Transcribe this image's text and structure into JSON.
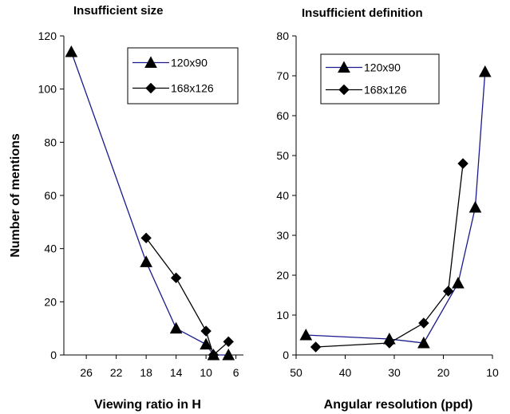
{
  "chart_data": [
    {
      "type": "line",
      "title": "Insufficient size",
      "xlabel": "Viewing ratio in H",
      "ylabel": "Number of mentions",
      "xlim": [
        29,
        5
      ],
      "ylim": [
        0,
        120
      ],
      "x_ticks": [
        "26",
        "22",
        "18",
        "14",
        "10",
        "6"
      ],
      "y_ticks": [
        "0",
        "20",
        "40",
        "60",
        "80",
        "100",
        "120"
      ],
      "grid": false,
      "legend_position": "top-right",
      "series": [
        {
          "name": "120x90",
          "marker": "triangle",
          "color": "#1a1a8c",
          "x": [
            28,
            18,
            14,
            10,
            9,
            7
          ],
          "y": [
            114,
            35,
            10,
            4,
            0,
            0
          ]
        },
        {
          "name": "168x126",
          "marker": "diamond",
          "color": "#000000",
          "x": [
            18,
            14,
            10,
            9,
            7
          ],
          "y": [
            44,
            29,
            9,
            0,
            5
          ]
        }
      ]
    },
    {
      "type": "line",
      "title": "Insufficient definition",
      "xlabel": "Angular resolution (ppd)",
      "ylabel": "",
      "xlim": [
        50,
        10
      ],
      "ylim": [
        0,
        80
      ],
      "x_ticks": [
        "50",
        "40",
        "30",
        "20",
        "10"
      ],
      "y_ticks": [
        "0",
        "10",
        "20",
        "30",
        "40",
        "50",
        "60",
        "70",
        "80"
      ],
      "grid": false,
      "legend_position": "top-left",
      "series": [
        {
          "name": "120x90",
          "marker": "triangle",
          "color": "#1a1a8c",
          "x": [
            48,
            31,
            24,
            17,
            13.5,
            11.5
          ],
          "y": [
            5,
            4,
            3,
            18,
            37,
            71
          ]
        },
        {
          "name": "168x126",
          "marker": "diamond",
          "color": "#000000",
          "x": [
            46,
            31,
            24,
            19,
            16
          ],
          "y": [
            2,
            3,
            8,
            16,
            48
          ]
        }
      ]
    }
  ]
}
